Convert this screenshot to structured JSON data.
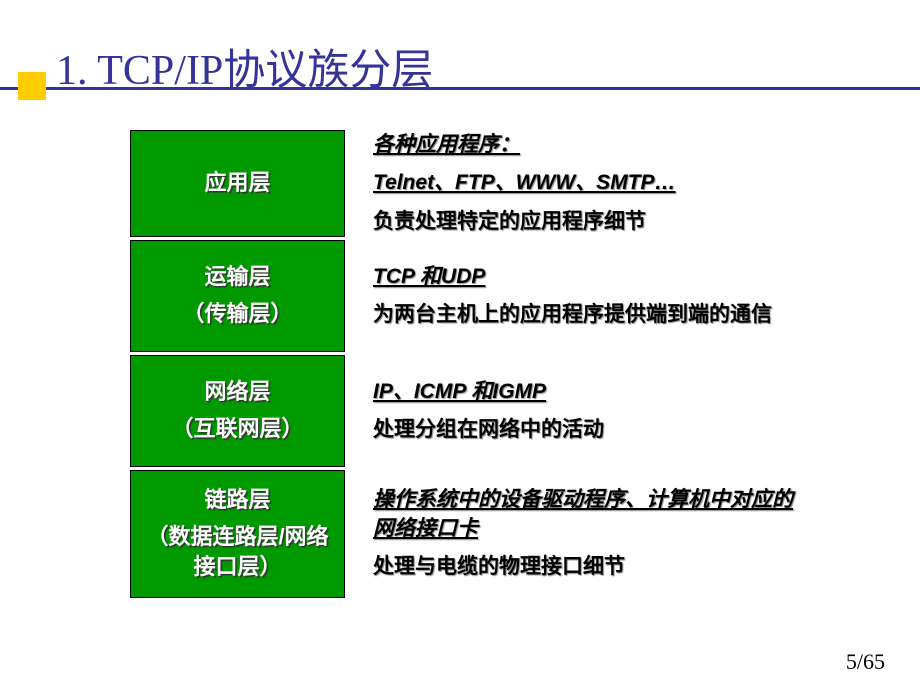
{
  "slide": {
    "title": "1. TCP/IP协议族分层",
    "page_number": "5/65",
    "colors": {
      "title_color": "#333399",
      "accent_box": "#ffcc00",
      "layer_bg": "#009900",
      "layer_border": "#000000",
      "layer_text": "#ffffff",
      "desc_text": "#000000",
      "background": "#ffffff"
    },
    "fonts": {
      "title_size": 42,
      "layer_size": 22,
      "desc_size": 21,
      "pagenum_size": 22
    },
    "layers": [
      {
        "name_lines": [
          "应用层"
        ],
        "desc": [
          {
            "text": "各种应用程序：",
            "style": "underline-italic"
          },
          {
            "text": "Telnet、FTP、WWW、SMTP…",
            "style": "underline-italic"
          },
          {
            "text": "负责处理特定的应用程序细节",
            "style": ""
          }
        ]
      },
      {
        "name_lines": [
          "运输层",
          "（传输层）"
        ],
        "desc": [
          {
            "text": "TCP 和UDP",
            "style": "underline-italic"
          },
          {
            "text": "为两台主机上的应用程序提供端到端的通信",
            "style": ""
          }
        ]
      },
      {
        "name_lines": [
          "网络层",
          "（互联网层）"
        ],
        "desc": [
          {
            "text": "IP、ICMP 和IGMP",
            "style": "underline-italic"
          },
          {
            "text": "处理分组在网络中的活动",
            "style": ""
          }
        ]
      },
      {
        "name_lines": [
          "链路层",
          "（数据连路层/网络接口层）"
        ],
        "desc": [
          {
            "text": "操作系统中的设备驱动程序、计算机中对应的网络接口卡",
            "style": "underline-italic"
          },
          {
            "text": "处理与电缆的物理接口细节",
            "style": ""
          }
        ]
      }
    ]
  }
}
